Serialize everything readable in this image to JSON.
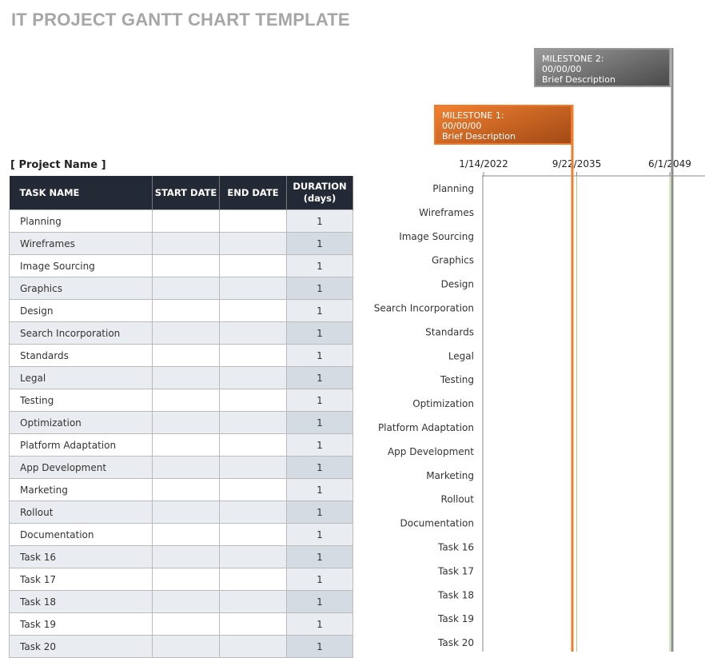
{
  "title": "IT PROJECT GANTT CHART TEMPLATE",
  "project_name": "[ Project Name ]",
  "table": {
    "headers": [
      "TASK NAME",
      "START DATE",
      "END DATE",
      "DURATION",
      "(days)"
    ],
    "rows": [
      {
        "task": "Planning",
        "start": "",
        "end": "",
        "duration": "1"
      },
      {
        "task": "Wireframes",
        "start": "",
        "end": "",
        "duration": "1"
      },
      {
        "task": "Image Sourcing",
        "start": "",
        "end": "",
        "duration": "1"
      },
      {
        "task": "Graphics",
        "start": "",
        "end": "",
        "duration": "1"
      },
      {
        "task": "Design",
        "start": "",
        "end": "",
        "duration": "1"
      },
      {
        "task": "Search Incorporation",
        "start": "",
        "end": "",
        "duration": "1"
      },
      {
        "task": "Standards",
        "start": "",
        "end": "",
        "duration": "1"
      },
      {
        "task": "Legal",
        "start": "",
        "end": "",
        "duration": "1"
      },
      {
        "task": "Testing",
        "start": "",
        "end": "",
        "duration": "1"
      },
      {
        "task": "Optimization",
        "start": "",
        "end": "",
        "duration": "1"
      },
      {
        "task": "Platform Adaptation",
        "start": "",
        "end": "",
        "duration": "1"
      },
      {
        "task": "App Development",
        "start": "",
        "end": "",
        "duration": "1"
      },
      {
        "task": "Marketing",
        "start": "",
        "end": "",
        "duration": "1"
      },
      {
        "task": "Rollout",
        "start": "",
        "end": "",
        "duration": "1"
      },
      {
        "task": "Documentation",
        "start": "",
        "end": "",
        "duration": "1"
      },
      {
        "task": "Task 16",
        "start": "",
        "end": "",
        "duration": "1"
      },
      {
        "task": "Task 17",
        "start": "",
        "end": "",
        "duration": "1"
      },
      {
        "task": "Task 18",
        "start": "",
        "end": "",
        "duration": "1"
      },
      {
        "task": "Task 19",
        "start": "",
        "end": "",
        "duration": "1"
      },
      {
        "task": "Task 20",
        "start": "",
        "end": "",
        "duration": "1"
      }
    ]
  },
  "milestones": [
    {
      "label": "MILESTONE 1:",
      "date": "00/00/00",
      "desc": "Brief Description",
      "color": "#ed7d31"
    },
    {
      "label": "MILESTONE 2:",
      "date": "00/00/00",
      "desc": "Brief Description",
      "color": "#8c8c8c"
    }
  ],
  "chart_data": {
    "type": "bar",
    "orientation": "horizontal",
    "categories": [
      "Planning",
      "Wireframes",
      "Image Sourcing",
      "Graphics",
      "Design",
      "Search Incorporation",
      "Standards",
      "Legal",
      "Testing",
      "Optimization",
      "Platform Adaptation",
      "App Development",
      "Marketing",
      "Rollout",
      "Documentation",
      "Task 16",
      "Task 17",
      "Task 18",
      "Task 19",
      "Task 20"
    ],
    "x_ticks": [
      "1/14/2022",
      "9/22/2035",
      "6/1/2049"
    ],
    "axis_position": "top",
    "gridlines_color": "#a9d18e"
  }
}
